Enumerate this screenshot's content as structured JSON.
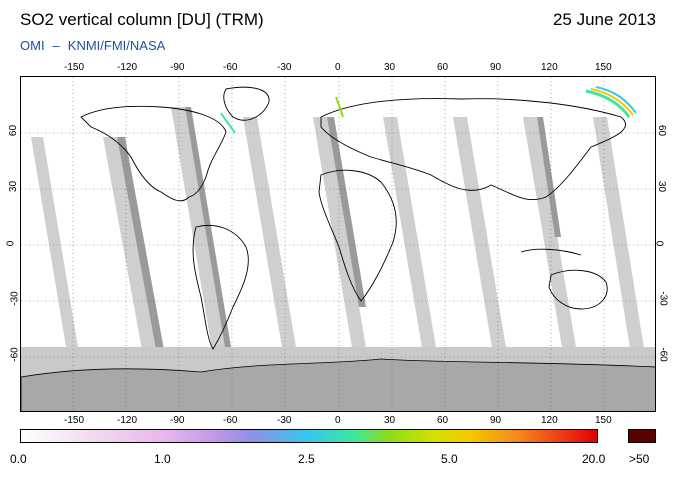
{
  "title": "SO2 vertical column [DU] (TRM)",
  "date": "25 June 2013",
  "credit": {
    "left": "OMI",
    "separator": "–",
    "right": "KNMI/FMI/NASA"
  },
  "map": {
    "lon_ticks": [
      "-150",
      "-120",
      "-90",
      "-60",
      "-30",
      "0",
      "30",
      "60",
      "90",
      "120",
      "150"
    ],
    "lat_ticks": [
      "60",
      "30",
      "0",
      "-30",
      "-60"
    ],
    "colors": {
      "orbit_gap": "#c8c8c8",
      "antarctica": "#a8a8a8",
      "coast": "#000000"
    }
  },
  "colorbar": {
    "labels": [
      "0.0",
      "1.0",
      "2.5",
      "5.0",
      "20.0"
    ],
    "max_label": ">50",
    "max_color": "#5a0000"
  }
}
